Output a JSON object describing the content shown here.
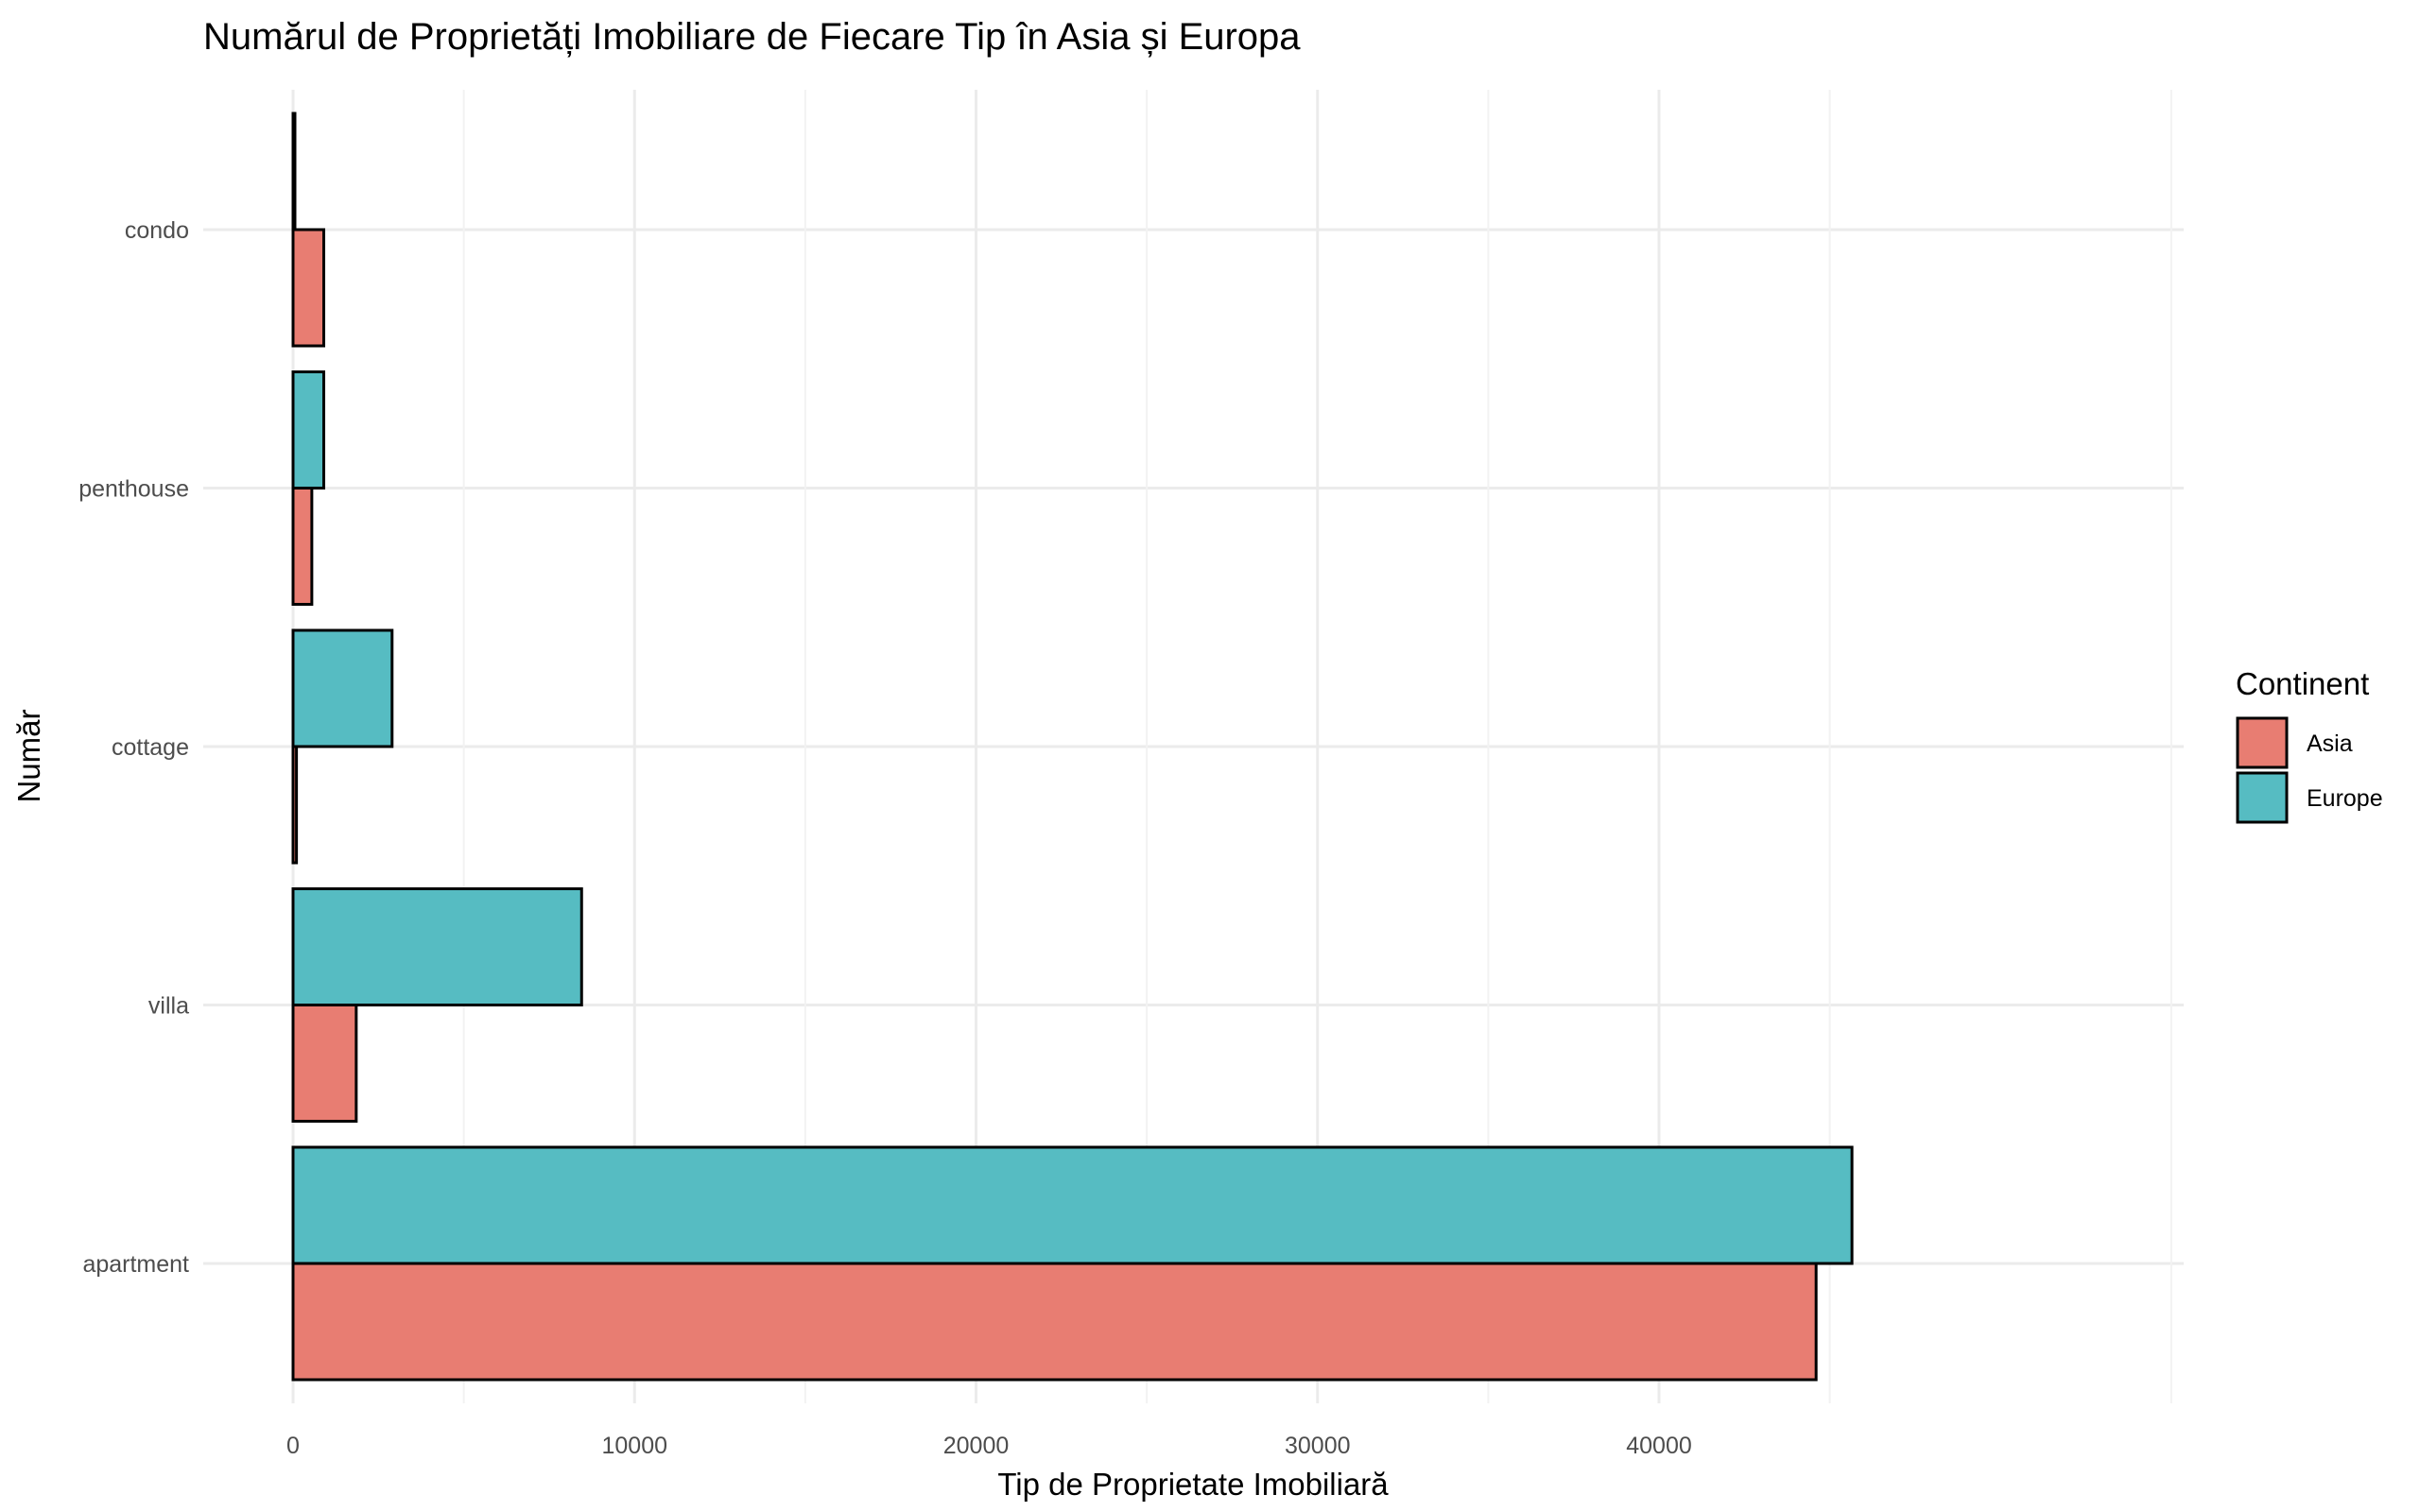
{
  "chart_data": {
    "type": "bar",
    "orientation": "horizontal",
    "title": "Numărul de Proprietăți Imobiliare de Fiecare Tip în Asia și Europa",
    "xlabel": "Tip de Proprietate Imobiliară",
    "ylabel": "Număr",
    "categories": [
      "apartment",
      "villa",
      "cottage",
      "penthouse",
      "condo"
    ],
    "series": [
      {
        "name": "Asia",
        "color": "#E87D72",
        "values": [
          44600,
          1850,
          100,
          550,
          900
        ]
      },
      {
        "name": "Europe",
        "color": "#56BCC2",
        "values": [
          45650,
          8450,
          2900,
          900,
          0
        ]
      }
    ],
    "xlim": [
      0,
      48000
    ],
    "xticks": [
      0,
      10000,
      20000,
      30000,
      40000
    ],
    "xtick_labels": [
      "0",
      "10000",
      "20000",
      "30000",
      "40000"
    ],
    "grid": true,
    "legend": {
      "title": "Continent",
      "position": "right",
      "entries": [
        "Asia",
        "Europe"
      ]
    }
  }
}
